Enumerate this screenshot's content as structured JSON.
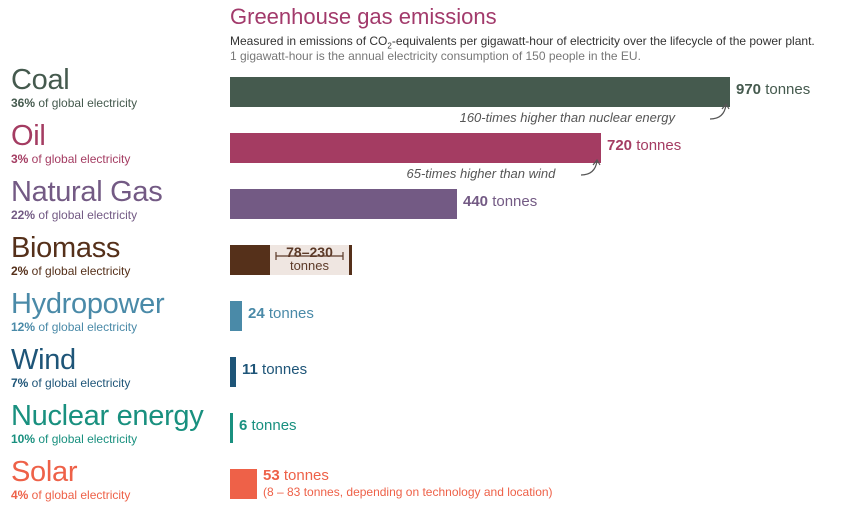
{
  "title": "Greenhouse gas emissions",
  "subtitle_pre": "Measured in emissions of CO",
  "subtitle_sub": "2",
  "subtitle_post": "-equivalents per gigawatt-hour of electricity over the lifecycle of the power plant.",
  "note": "1 gigawatt-hour is the annual electricity consumption of 150 people in the EU.",
  "share_suffix": " of global electricity",
  "chart_data": {
    "type": "bar",
    "orientation": "horizontal",
    "xlim": [
      0,
      970
    ],
    "grid": false,
    "categories": [
      "Coal",
      "Oil",
      "Natural Gas",
      "Biomass",
      "Hydropower",
      "Wind",
      "Nuclear energy",
      "Solar"
    ],
    "series": [
      {
        "values": [
          970,
          720,
          440,
          78,
          24,
          11,
          6,
          53
        ]
      }
    ],
    "biomass_range": [
      78,
      230
    ],
    "rows": [
      {
        "name": "Coal",
        "share": "36%",
        "value_num": "970",
        "value_unit": " tonnes",
        "color": "#455a4e",
        "value_color": "#455a4e",
        "comparison": "160-times higher than nuclear energy"
      },
      {
        "name": "Oil",
        "share": "3%",
        "value_num": "720",
        "value_unit": " tonnes",
        "color": "#a43c62",
        "value_color": "#a43c62",
        "comparison": "65-times higher than wind"
      },
      {
        "name": "Natural Gas",
        "share": "22%",
        "value_num": "440",
        "value_unit": " tonnes",
        "color": "#735a84",
        "value_color": "#735a84"
      },
      {
        "name": "Biomass",
        "share": "2%",
        "value_num": "78–230",
        "value_unit": "tonnes",
        "color": "#55301a",
        "value_color": "#55301a"
      },
      {
        "name": "Hydropower",
        "share": "12%",
        "value_num": "24",
        "value_unit": " tonnes",
        "color": "#4a8aa8",
        "value_color": "#4a8aa8"
      },
      {
        "name": "Wind",
        "share": "7%",
        "value_num": "11",
        "value_unit": " tonnes",
        "color": "#1e5578",
        "value_color": "#1e5578"
      },
      {
        "name": "Nuclear energy",
        "share": "10%",
        "value_num": "6",
        "value_unit": " tonnes",
        "color": "#19907f",
        "value_color": "#19907f"
      },
      {
        "name": "Solar",
        "share": "4%",
        "value_num": "53",
        "value_unit": " tonnes",
        "color": "#ee6148",
        "value_color": "#ee6148",
        "extra": "(8 – 83 tonnes, depending on technology and location)"
      }
    ]
  }
}
